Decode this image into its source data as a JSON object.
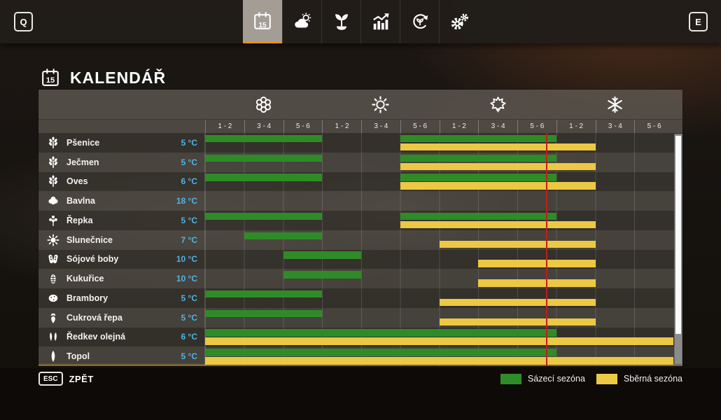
{
  "top_bar": {
    "left_hotkey": "Q",
    "right_hotkey": "E",
    "tabs": [
      {
        "id": "calendar",
        "icon": "calendar-icon",
        "badge": "15",
        "active": true
      },
      {
        "id": "weather",
        "icon": "weather-icon",
        "active": false
      },
      {
        "id": "crops",
        "icon": "seedling-icon",
        "active": false
      },
      {
        "id": "prices",
        "icon": "chart-icon",
        "active": false
      },
      {
        "id": "rotation",
        "icon": "crop-rotation-icon",
        "active": false
      },
      {
        "id": "settings",
        "icon": "gears-icon",
        "active": false
      }
    ]
  },
  "header": {
    "title": "KALENDÁŘ",
    "icon_badge": "15"
  },
  "calendar": {
    "seasons": [
      {
        "id": "spring",
        "icon": "flower-icon"
      },
      {
        "id": "summer",
        "icon": "sun-icon"
      },
      {
        "id": "autumn",
        "icon": "maple-leaf-icon"
      },
      {
        "id": "winter",
        "icon": "snowflake-icon"
      }
    ],
    "period_labels": [
      "1 - 2",
      "3 - 4",
      "5 - 6"
    ],
    "columns_total": 12,
    "current_time_column": 8.73,
    "rows": [
      {
        "crop": "Pšenice",
        "icon": "wheat",
        "temp": "5 °C",
        "plant": [
          [
            0,
            2
          ],
          [
            5,
            8
          ]
        ],
        "harvest": [
          [
            5,
            9
          ]
        ]
      },
      {
        "crop": "Ječmen",
        "icon": "barley",
        "temp": "5 °C",
        "plant": [
          [
            0,
            2
          ],
          [
            5,
            8
          ]
        ],
        "harvest": [
          [
            5,
            9
          ]
        ]
      },
      {
        "crop": "Oves",
        "icon": "oats",
        "temp": "6 °C",
        "plant": [
          [
            0,
            2
          ],
          [
            5,
            8
          ]
        ],
        "harvest": [
          [
            5,
            9
          ]
        ]
      },
      {
        "crop": "Bavlna",
        "icon": "cotton",
        "temp": "18 °C",
        "plant": [],
        "harvest": []
      },
      {
        "crop": "Řepka",
        "icon": "canola",
        "temp": "5 °C",
        "plant": [
          [
            0,
            2
          ],
          [
            5,
            8
          ]
        ],
        "harvest": [
          [
            5,
            9
          ]
        ]
      },
      {
        "crop": "Slunečnice",
        "icon": "sunflower",
        "temp": "7 °C",
        "plant": [
          [
            1,
            2
          ]
        ],
        "harvest": [
          [
            6,
            9
          ]
        ]
      },
      {
        "crop": "Sójové boby",
        "icon": "soybean",
        "temp": "10 °C",
        "plant": [
          [
            2,
            3
          ]
        ],
        "harvest": [
          [
            7,
            9
          ]
        ]
      },
      {
        "crop": "Kukuřice",
        "icon": "corn",
        "temp": "10 °C",
        "plant": [
          [
            2,
            3
          ]
        ],
        "harvest": [
          [
            7,
            9
          ]
        ]
      },
      {
        "crop": "Brambory",
        "icon": "potato",
        "temp": "5 °C",
        "plant": [
          [
            0,
            2
          ]
        ],
        "harvest": [
          [
            6,
            9
          ]
        ]
      },
      {
        "crop": "Cukrová řepa",
        "icon": "sugar-beet",
        "temp": "5 °C",
        "plant": [
          [
            0,
            2
          ]
        ],
        "harvest": [
          [
            6,
            9
          ]
        ]
      },
      {
        "crop": "Ředkev olejná",
        "icon": "oilseed-radish",
        "temp": "6 °C",
        "plant": [
          [
            0,
            8
          ]
        ],
        "harvest": [
          [
            0,
            11
          ]
        ]
      },
      {
        "crop": "Topol",
        "icon": "poplar",
        "temp": "5 °C",
        "plant": [
          [
            0,
            8
          ]
        ],
        "harvest": [
          [
            0,
            11
          ]
        ]
      }
    ],
    "legend": [
      {
        "label": "Sázecí sezóna",
        "color": "#2f8b27"
      },
      {
        "label": "Sběrná sezóna",
        "color": "#ecc844"
      }
    ]
  },
  "footer": {
    "hotkey": "ESC",
    "back_label": "ZPĚT"
  },
  "colors": {
    "plant_bar": "#2f8b27",
    "harvest_bar": "#ecc844",
    "current_time_line": "#c41d1a",
    "temperature_text": "#4fb3e5",
    "accent_orange": "#ee9310"
  }
}
